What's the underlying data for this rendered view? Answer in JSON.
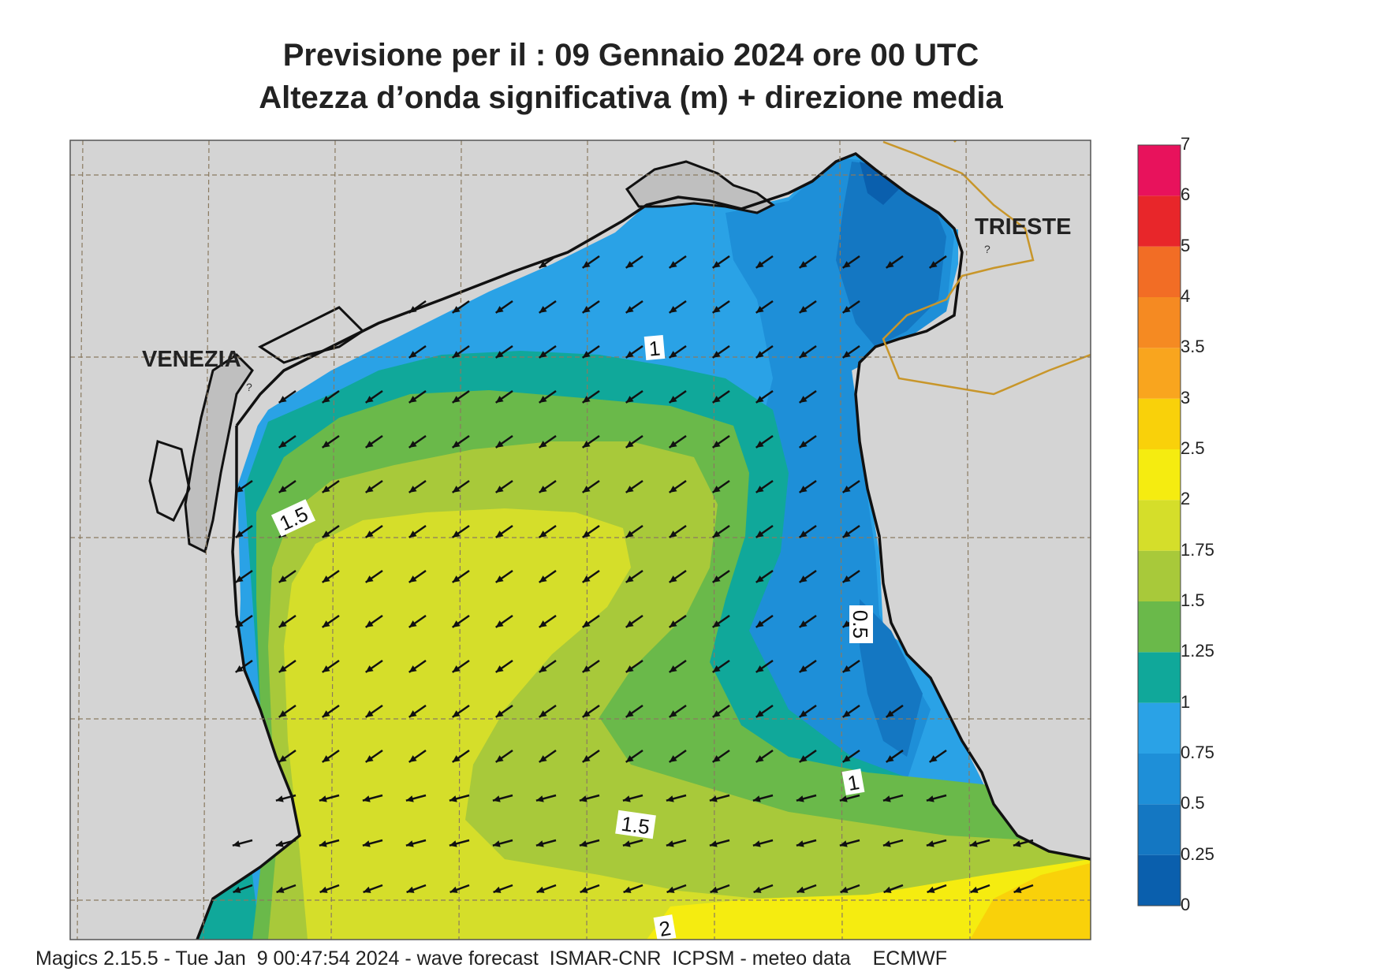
{
  "header": {
    "title_line1": "Previsione per il  :  09  Gennaio  2024   ore 00 UTC",
    "title_line2": "Altezza d’onda significativa (m) + direzione media"
  },
  "map": {
    "cities": {
      "venezia": "VENEZIA",
      "trieste": "TRIESTE"
    },
    "contour_labels": {
      "c1_north": "1",
      "c1_5_west": "1.5",
      "c0_5_east": "0.5",
      "c1_south": "1",
      "c1_5_south": "1.5",
      "c2_south": "2"
    },
    "land_color": "#d4d4d4",
    "arrow_direction": "southwest"
  },
  "legend": {
    "levels": [
      "0",
      "0.25",
      "0.5",
      "0.75",
      "1",
      "1.25",
      "1.5",
      "1.75",
      "2",
      "2.5",
      "3",
      "3.5",
      "4",
      "5",
      "6",
      "7"
    ],
    "colors": [
      "#0a5fad",
      "#1477c2",
      "#1e8fd8",
      "#2aa2e6",
      "#10a89a",
      "#6ab94a",
      "#a8c93a",
      "#d5de2a",
      "#f5ec10",
      "#f9d10a",
      "#f9a51e",
      "#f58a22",
      "#f26d25",
      "#e8262a",
      "#e8125c"
    ]
  },
  "footer": {
    "text": "Magics 2.15.5 - Tue Jan  9 00:47:54 2024 - wave forecast  ISMAR-CNR  ICPSM - meteo data    ECMWF"
  }
}
